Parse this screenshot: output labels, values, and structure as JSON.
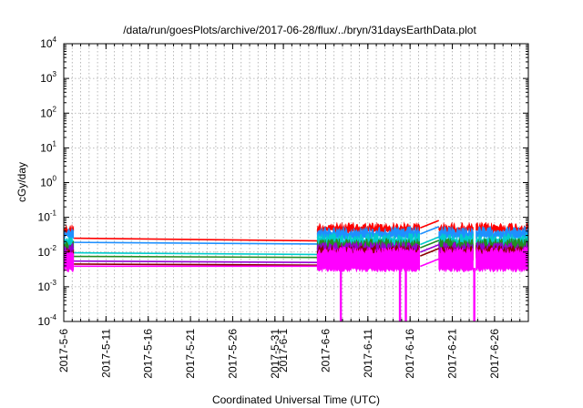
{
  "chart_data": {
    "type": "line",
    "title": "/data/run/goesPlots/archive/2017-06-28/flux/../bryn/31daysEarthData.plot",
    "xlabel": "Coordinated Universal Time (UTC)",
    "ylabel": "cGy/day",
    "y_scale": "log",
    "ylim": [
      0.0001,
      10000
    ],
    "xlim": [
      "2017-05-06",
      "2017-06-30"
    ],
    "grid": true,
    "x_ticks": [
      {
        "date": "2017-05-06",
        "label": "2017-5-6"
      },
      {
        "date": "2017-05-11",
        "label": "2017-5-11"
      },
      {
        "date": "2017-05-16",
        "label": "2017-5-16"
      },
      {
        "date": "2017-05-21",
        "label": "2017-5-21"
      },
      {
        "date": "2017-05-26",
        "label": "2017-5-26"
      },
      {
        "date": "2017-05-31",
        "label": "2017-5-31"
      },
      {
        "date": "2017-06-01",
        "label": "2017-6-1"
      },
      {
        "date": "2017-06-06",
        "label": "2017-6-6"
      },
      {
        "date": "2017-06-11",
        "label": "2017-6-11"
      },
      {
        "date": "2017-06-16",
        "label": "2017-6-16"
      },
      {
        "date": "2017-06-21",
        "label": "2017-6-21"
      },
      {
        "date": "2017-06-26",
        "label": "2017-6-26"
      }
    ],
    "y_ticks": [
      {
        "value": 0.0001,
        "base": "10",
        "exp": "-4"
      },
      {
        "value": 0.001,
        "base": "10",
        "exp": "-3"
      },
      {
        "value": 0.01,
        "base": "10",
        "exp": "-2"
      },
      {
        "value": 0.1,
        "base": "10",
        "exp": "-1"
      },
      {
        "value": 1,
        "base": "10",
        "exp": "0"
      },
      {
        "value": 10,
        "base": "10",
        "exp": "1"
      },
      {
        "value": 100,
        "base": "10",
        "exp": "2"
      },
      {
        "value": 1000,
        "base": "10",
        "exp": "3"
      },
      {
        "value": 10000,
        "base": "10",
        "exp": "4"
      }
    ],
    "data_segments": [
      {
        "start": "2017-05-06",
        "end": "2017-05-07.2"
      },
      {
        "start": "2017-06-05",
        "end": "2017-06-17.2"
      },
      {
        "start": "2017-06-19.4",
        "end": "2017-06-23.5"
      },
      {
        "start": "2017-06-23.8",
        "end": "2017-06-30"
      }
    ],
    "dropouts": [
      "2017-06-07.8",
      "2017-06-14.8",
      "2017-06-15.5",
      "2017-06-23.6"
    ],
    "series": [
      {
        "color": "#ff0000",
        "pre": 0.025,
        "mid": 0.021,
        "hi": 0.072,
        "lo": 0.045
      },
      {
        "color": "#1e90ff",
        "pre": 0.019,
        "mid": 0.017,
        "hi": 0.055,
        "lo": 0.03
      },
      {
        "color": "#00cdcd",
        "pre": 0.0095,
        "mid": 0.0085,
        "hi": 0.035,
        "lo": 0.015
      },
      {
        "color": "#228b22",
        "pre": 0.0075,
        "mid": 0.007,
        "hi": 0.025,
        "lo": 0.012
      },
      {
        "color": "#9400d3",
        "pre": 0.0055,
        "mid": 0.005,
        "hi": 0.02,
        "lo": 0.009
      },
      {
        "color": "#8b0000",
        "pre": 0.0045,
        "mid": 0.0042,
        "hi": 0.016,
        "lo": 0.007
      },
      {
        "color": "#ff00ff",
        "pre": 0.0039,
        "mid": 0.0039,
        "hi": 0.014,
        "lo": 0.0035
      }
    ]
  }
}
